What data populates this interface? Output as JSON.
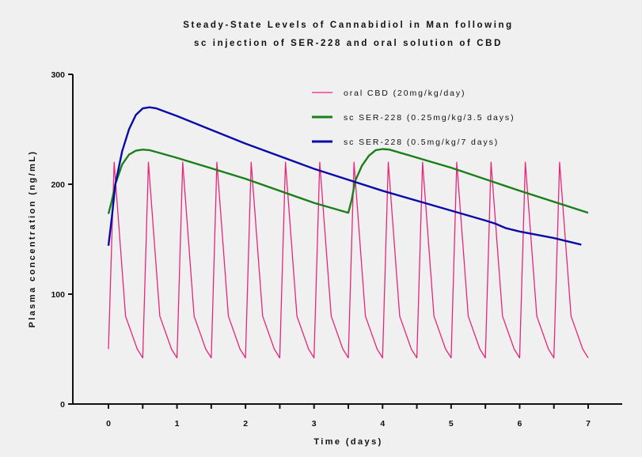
{
  "chart_data": {
    "type": "line",
    "title": [
      "Steady-State Levels of Cannabidiol in Man following",
      "sc injection of SER-228 and oral solution of CBD"
    ],
    "xlabel": "Time (days)",
    "ylabel": "Plasma concentration (ng/mL)",
    "xlim": [
      0,
      7
    ],
    "ylim": [
      0,
      300
    ],
    "xticks": [
      "0",
      "1",
      "2",
      "3",
      "4",
      "5",
      "6",
      "7"
    ],
    "yticks": [
      "0",
      "100",
      "200",
      "300"
    ],
    "grid": false,
    "legend_position": "top-right",
    "series": [
      {
        "name": "oral CBD (20mg/kg/day)",
        "color": "#e8257a",
        "pattern": {
          "period": 0.5,
          "start": 50,
          "points": [
            [
              0.083,
              220
            ],
            [
              0.25,
              80
            ],
            [
              0.42,
              50
            ],
            [
              0.5,
              42
            ]
          ]
        }
      },
      {
        "name": "sc SER-228 (0.25mg/kg/3.5 days)",
        "color": "#1a7f1a",
        "points": [
          [
            0,
            173
          ],
          [
            0.05,
            185
          ],
          [
            0.1,
            200
          ],
          [
            0.2,
            218
          ],
          [
            0.3,
            227
          ],
          [
            0.4,
            230.5
          ],
          [
            0.5,
            231.5
          ],
          [
            0.6,
            231
          ],
          [
            1,
            224
          ],
          [
            2,
            205
          ],
          [
            3,
            183
          ],
          [
            3.5,
            174
          ],
          [
            3.55,
            186
          ],
          [
            3.6,
            203
          ],
          [
            3.7,
            217
          ],
          [
            3.8,
            226
          ],
          [
            3.9,
            231
          ],
          [
            4,
            232
          ],
          [
            4.1,
            231.5
          ],
          [
            5,
            215
          ],
          [
            6,
            194
          ],
          [
            7,
            174
          ]
        ]
      },
      {
        "name": "sc SER-228 (0.5mg/kg/7 days)",
        "color": "#0a0aa8",
        "points": [
          [
            0,
            144
          ],
          [
            0.05,
            170
          ],
          [
            0.1,
            200
          ],
          [
            0.2,
            230
          ],
          [
            0.3,
            250
          ],
          [
            0.4,
            263
          ],
          [
            0.5,
            269
          ],
          [
            0.6,
            270
          ],
          [
            0.7,
            269
          ],
          [
            1,
            262
          ],
          [
            2,
            237
          ],
          [
            3,
            214
          ],
          [
            4,
            194
          ],
          [
            5,
            176
          ],
          [
            5.5,
            167
          ],
          [
            5.65,
            164
          ],
          [
            5.8,
            160
          ],
          [
            6,
            157
          ],
          [
            6.5,
            151
          ],
          [
            6.9,
            145
          ]
        ]
      }
    ]
  }
}
